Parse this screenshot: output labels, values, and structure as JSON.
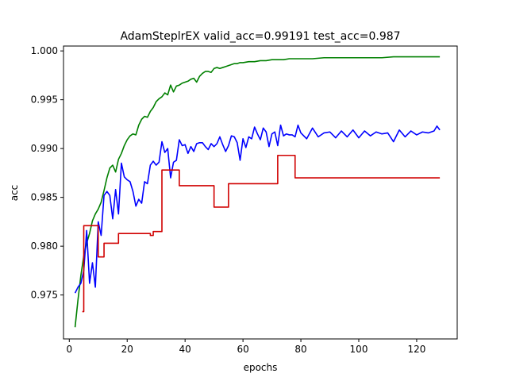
{
  "chart_data": {
    "type": "line",
    "title": "AdamSteplrEX valid_acc=0.99191  test_acc=0.987",
    "xlabel": "epochs",
    "ylabel": "acc",
    "xlim": [
      -2,
      134
    ],
    "ylim": [
      0.9705,
      1.0005
    ],
    "xticks": [
      0,
      20,
      40,
      60,
      80,
      100,
      120
    ],
    "yticks": [
      0.975,
      0.98,
      0.985,
      0.99,
      0.995,
      1.0
    ],
    "xtick_labels": [
      "0",
      "20",
      "40",
      "60",
      "80",
      "100",
      "120"
    ],
    "ytick_labels": [
      "0.975",
      "0.980",
      "0.985",
      "0.990",
      "0.995",
      "1.000"
    ],
    "grid": false,
    "legend": "none",
    "series": [
      {
        "color": "#008000",
        "step": false,
        "x": [
          2,
          3,
          4,
          5,
          6,
          7,
          8,
          9,
          10,
          11,
          12,
          13,
          14,
          15,
          16,
          17,
          18,
          19,
          20,
          21,
          22,
          23,
          24,
          25,
          26,
          27,
          28,
          29,
          30,
          31,
          32,
          33,
          34,
          35,
          36,
          37,
          38,
          39,
          40,
          41,
          42,
          43,
          44,
          45,
          46,
          47,
          48,
          49,
          50,
          51,
          52,
          53,
          54,
          55,
          56,
          57,
          58,
          59,
          60,
          62,
          64,
          66,
          68,
          70,
          72,
          74,
          76,
          78,
          80,
          84,
          88,
          92,
          96,
          100,
          104,
          108,
          112,
          116,
          120,
          124,
          128
        ],
        "y": [
          0.9717,
          0.9745,
          0.977,
          0.979,
          0.9803,
          0.9813,
          0.9826,
          0.9833,
          0.9838,
          0.9845,
          0.9857,
          0.987,
          0.988,
          0.9883,
          0.9876,
          0.9889,
          0.9895,
          0.9903,
          0.9909,
          0.9913,
          0.9915,
          0.9914,
          0.9924,
          0.993,
          0.9933,
          0.9932,
          0.9938,
          0.9942,
          0.9948,
          0.9951,
          0.9953,
          0.9957,
          0.9955,
          0.9965,
          0.9958,
          0.9964,
          0.9965,
          0.9967,
          0.9968,
          0.9969,
          0.9971,
          0.9972,
          0.9968,
          0.9974,
          0.9977,
          0.9979,
          0.9979,
          0.9978,
          0.9982,
          0.9983,
          0.9982,
          0.9983,
          0.9984,
          0.9985,
          0.9986,
          0.9987,
          0.9987,
          0.9988,
          0.9988,
          0.9989,
          0.9989,
          0.999,
          0.999,
          0.9991,
          0.9991,
          0.9991,
          0.9992,
          0.9992,
          0.9992,
          0.9992,
          0.9993,
          0.9993,
          0.9993,
          0.9993,
          0.9993,
          0.9993,
          0.9994,
          0.9994,
          0.9994,
          0.9994,
          0.9994
        ]
      },
      {
        "color": "#0000ff",
        "step": false,
        "x": [
          2,
          3,
          4,
          5,
          6,
          7,
          8,
          9,
          10,
          11,
          12,
          13,
          14,
          15,
          16,
          17,
          18,
          19,
          20,
          21,
          22,
          23,
          24,
          25,
          26,
          27,
          28,
          29,
          30,
          31,
          32,
          33,
          34,
          35,
          36,
          37,
          38,
          39,
          40,
          41,
          42,
          43,
          44,
          45,
          46,
          47,
          48,
          49,
          50,
          51,
          52,
          53,
          54,
          55,
          56,
          57,
          58,
          59,
          60,
          61,
          62,
          63,
          64,
          65,
          66,
          67,
          68,
          69,
          70,
          71,
          72,
          73,
          74,
          75,
          76,
          77,
          78,
          79,
          80,
          82,
          84,
          86,
          88,
          90,
          92,
          94,
          96,
          98,
          100,
          102,
          104,
          106,
          108,
          110,
          112,
          114,
          116,
          118,
          120,
          122,
          124,
          126,
          127,
          128
        ],
        "y": [
          0.9752,
          0.9758,
          0.9762,
          0.9775,
          0.9816,
          0.9762,
          0.9783,
          0.9758,
          0.9825,
          0.9811,
          0.9852,
          0.9856,
          0.9852,
          0.9828,
          0.9858,
          0.9833,
          0.9885,
          0.9871,
          0.9868,
          0.9866,
          0.9856,
          0.9841,
          0.9848,
          0.9844,
          0.9866,
          0.9864,
          0.9883,
          0.9887,
          0.9883,
          0.9886,
          0.9907,
          0.9896,
          0.99,
          0.987,
          0.9886,
          0.9888,
          0.9909,
          0.9903,
          0.9904,
          0.9895,
          0.9902,
          0.9897,
          0.9905,
          0.9906,
          0.9906,
          0.9902,
          0.9899,
          0.9905,
          0.9902,
          0.9905,
          0.9912,
          0.9904,
          0.9897,
          0.9903,
          0.9913,
          0.9912,
          0.9906,
          0.9888,
          0.991,
          0.9901,
          0.9912,
          0.991,
          0.9922,
          0.9915,
          0.9909,
          0.9921,
          0.9917,
          0.9902,
          0.9915,
          0.9917,
          0.9903,
          0.9924,
          0.9913,
          0.9915,
          0.9914,
          0.9914,
          0.9912,
          0.9924,
          0.9916,
          0.991,
          0.9921,
          0.9912,
          0.9916,
          0.9917,
          0.9911,
          0.9918,
          0.9912,
          0.9919,
          0.9911,
          0.9918,
          0.9913,
          0.9917,
          0.9915,
          0.9916,
          0.9907,
          0.9919,
          0.9912,
          0.9918,
          0.9914,
          0.9917,
          0.9916,
          0.9918,
          0.9923,
          0.9919
        ]
      },
      {
        "color": "#d00000",
        "step": true,
        "x": [
          4.5,
          5,
          7,
          10,
          12,
          17,
          28,
          29,
          32,
          38,
          50,
          55,
          72,
          78,
          128
        ],
        "y": [
          0.9733,
          0.9821,
          0.9821,
          0.9789,
          0.9803,
          0.9813,
          0.9811,
          0.9815,
          0.9878,
          0.9862,
          0.984,
          0.9864,
          0.9893,
          0.987,
          0.987
        ]
      }
    ]
  }
}
